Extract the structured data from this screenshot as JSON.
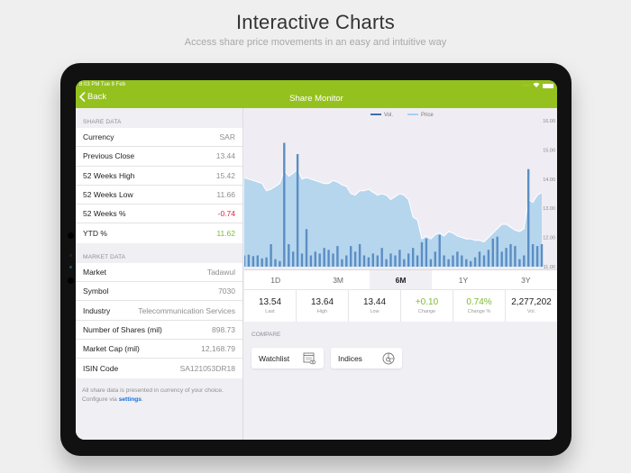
{
  "hero": {
    "title": "Interactive Charts",
    "subtitle": "Access share price movements in an easy and intuitive way"
  },
  "status_bar": {
    "time": "8:03 PM  Tue 8 Feb"
  },
  "navbar": {
    "back_label": "Back",
    "title": "Share Monitor"
  },
  "share_data": {
    "header": "SHARE DATA",
    "rows": [
      {
        "label": "Currency",
        "value": "SAR"
      },
      {
        "label": "Previous Close",
        "value": "13.44"
      },
      {
        "label": "52 Weeks High",
        "value": "15.42"
      },
      {
        "label": "52 Weeks Low",
        "value": "11.66"
      },
      {
        "label": "52 Weeks %",
        "value": "-0.74"
      },
      {
        "label": "YTD %",
        "value": "11.62"
      }
    ]
  },
  "market_data": {
    "header": "MARKET DATA",
    "rows": [
      {
        "label": "Market",
        "value": "Tadawul"
      },
      {
        "label": "Symbol",
        "value": "7030"
      },
      {
        "label": "Industry",
        "value": "Telecommunication Services"
      },
      {
        "label": "Number of Shares (mil)",
        "value": "898.73"
      },
      {
        "label": "Market Cap (mil)",
        "value": "12,168.79"
      },
      {
        "label": "ISIN Code",
        "value": "SA121053DR18"
      }
    ]
  },
  "footnote": {
    "text": "All share data is presented in currency of your choice. Configure via ",
    "link": "settings",
    "end": "."
  },
  "chart": {
    "legend": {
      "vol": "Vol.",
      "price": "Price"
    },
    "y_ticks": [
      "16.00",
      "15.00",
      "14.00",
      "13.00",
      "12.00",
      "11.00"
    ],
    "colors": {
      "price_fill": "#b6d6ee",
      "price_line": "#ffffff",
      "volume": "#5b8ec4",
      "background": "#efedf3"
    }
  },
  "range_tabs": [
    {
      "label": "1D",
      "active": false
    },
    {
      "label": "3M",
      "active": false
    },
    {
      "label": "6M",
      "active": true
    },
    {
      "label": "1Y",
      "active": false
    },
    {
      "label": "3Y",
      "active": false
    }
  ],
  "stats": [
    {
      "value": "13.54",
      "label": "Last"
    },
    {
      "value": "13.64",
      "label": "High"
    },
    {
      "value": "13.44",
      "label": "Low"
    },
    {
      "value": "+0.10",
      "label": "Change"
    },
    {
      "value": "0.74%",
      "label": "Change %"
    },
    {
      "value": "2,277,202",
      "label": "Vol."
    }
  ],
  "compare": {
    "header": "COMPARE",
    "watchlist_label": "Watchlist",
    "indices_label": "Indices"
  },
  "colors": {
    "brand_green": "#95c11f",
    "negative": "#e0213a",
    "positive": "#7dbb32",
    "link": "#1a6fe0"
  },
  "chart_data": {
    "type": "area",
    "title": "",
    "xlabel": "",
    "ylabel": "",
    "ylim": [
      11,
      16
    ],
    "legend": [
      "Vol.",
      "Price"
    ],
    "legend_position": "top",
    "grid": false,
    "series": [
      {
        "name": "Price",
        "values": [
          14.05,
          14.0,
          13.95,
          13.9,
          13.85,
          13.6,
          13.65,
          13.75,
          13.85,
          14.3,
          14.1,
          14.2,
          14.35,
          14.0,
          14.05,
          14.0,
          13.95,
          13.9,
          13.85,
          13.85,
          13.95,
          13.9,
          13.8,
          13.75,
          13.5,
          13.45,
          13.6,
          13.6,
          13.65,
          13.55,
          13.45,
          13.5,
          13.45,
          13.3,
          13.4,
          13.5,
          13.45,
          13.3,
          12.7,
          12.6,
          11.95,
          12.05,
          11.95,
          12.1,
          12.15,
          12.05,
          12.2,
          12.15,
          12.05,
          12.0,
          11.95,
          11.95,
          11.9,
          11.9,
          11.85,
          12.0,
          12.15,
          12.3,
          12.45,
          12.45,
          12.35,
          12.25,
          12.2,
          12.3,
          13.3,
          13.2,
          13.45,
          13.54
        ]
      },
      {
        "name": "Vol.",
        "values": [
          0.3,
          0.32,
          0.28,
          0.3,
          0.22,
          0.25,
          0.6,
          0.2,
          0.15,
          3.3,
          0.6,
          0.4,
          3.0,
          0.35,
          1.0,
          0.3,
          0.4,
          0.35,
          0.5,
          0.45,
          0.35,
          0.55,
          0.2,
          0.3,
          0.55,
          0.4,
          0.6,
          0.3,
          0.25,
          0.35,
          0.3,
          0.5,
          0.2,
          0.35,
          0.3,
          0.45,
          0.2,
          0.35,
          0.5,
          0.3,
          0.65,
          0.75,
          0.2,
          0.4,
          0.85,
          0.3,
          0.2,
          0.3,
          0.4,
          0.3,
          0.2,
          0.15,
          0.25,
          0.4,
          0.3,
          0.45,
          0.75,
          0.8,
          0.4,
          0.5,
          0.6,
          0.55,
          0.2,
          0.3,
          2.6,
          0.6,
          0.55,
          0.6
        ]
      }
    ]
  }
}
